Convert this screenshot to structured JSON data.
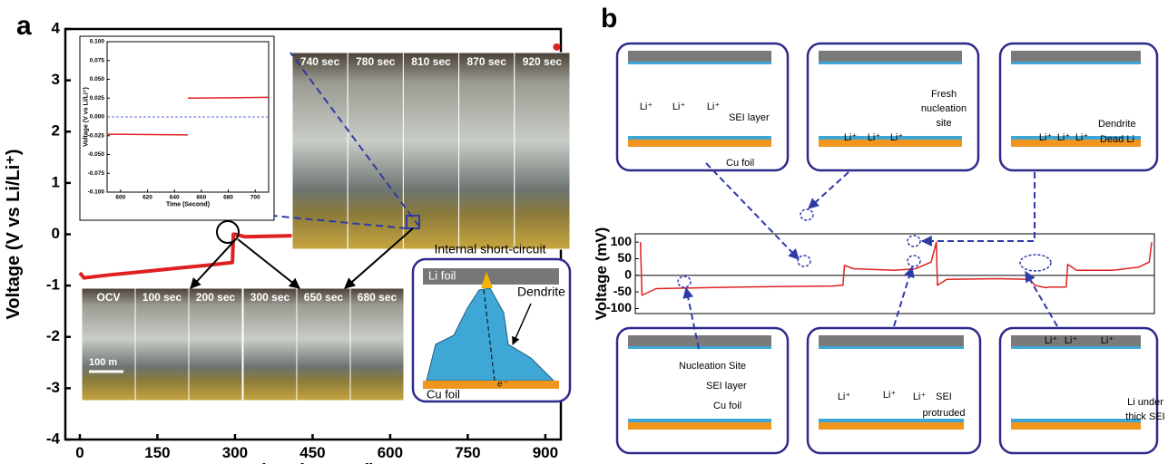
{
  "panel_labels": [
    "a",
    "b"
  ],
  "chart_data": [
    {
      "type": "line",
      "xlabel": "Time (Second)",
      "ylabel": "Voltage (V vs Li/Li⁺)",
      "xlim": [
        -28,
        930
      ],
      "ylim": [
        -4,
        4
      ],
      "xticks": [
        0,
        150,
        300,
        450,
        600,
        750,
        900
      ],
      "yticks": [
        -4,
        -3,
        -2,
        -1,
        0,
        1,
        2,
        3,
        4
      ],
      "series": [
        {
          "color": "#e02020",
          "style": "line",
          "x": [
            0,
            8,
            50,
            100,
            150,
            200,
            250,
            295,
            297,
            300,
            320,
            400,
            500,
            600,
            650,
            700,
            720,
            722,
            730,
            760,
            800,
            850,
            900,
            915
          ],
          "values": [
            -0.75,
            -0.85,
            -0.8,
            -0.75,
            -0.7,
            -0.65,
            -0.6,
            -0.55,
            0,
            0,
            -0.05,
            -0.03,
            0,
            0.02,
            0.03,
            0.04,
            0.05,
            0.5,
            0.62,
            0.68,
            0.72,
            0.78,
            0.88,
            1.0
          ]
        },
        {
          "color": "#e02020",
          "style": "dots",
          "x": [
            922
          ],
          "values": [
            3.65
          ]
        }
      ]
    },
    {
      "type": "line",
      "xlabel": "Time (Second)",
      "ylabel": "Voltage (V vs Li/Li⁺)",
      "xlim": [
        590,
        710
      ],
      "ylim": [
        -0.1,
        0.1
      ],
      "zero_line": true,
      "xticks": [
        600,
        620,
        640,
        660,
        680,
        700
      ],
      "yticks": [
        {
          "value": -0.1,
          "label": "-0.100"
        },
        {
          "value": -0.075,
          "label": "-0.075"
        },
        {
          "value": -0.05,
          "label": "-0.050"
        },
        {
          "value": -0.025,
          "label": "-0.025"
        },
        {
          "value": 0,
          "label": "0.000"
        },
        {
          "value": 0.025,
          "label": "0.025"
        },
        {
          "value": 0.05,
          "label": "0.050"
        },
        {
          "value": 0.075,
          "label": "0.075"
        },
        {
          "value": 0.1,
          "label": "0.100"
        }
      ],
      "series": [
        {
          "color": "#e02020",
          "style": "line",
          "x": [
            590,
            650,
            650,
            650,
            710
          ],
          "values": [
            -0.023,
            -0.024,
            null,
            0.025,
            0.026
          ]
        }
      ]
    },
    {
      "type": "line",
      "ylabel": "Voltage (mV)",
      "xlim": [
        0,
        100
      ],
      "ylim": [
        -115,
        125
      ],
      "zero_line": true,
      "yticks": [
        -100,
        -50,
        0,
        50,
        100
      ],
      "series": [
        {
          "color": "#e02020",
          "style": "line",
          "x": [
            1,
            1.3,
            2,
            4,
            20,
            38,
            40,
            40.3,
            42,
            50,
            54,
            57,
            58,
            58.2,
            60,
            70,
            76,
            77,
            79,
            80,
            83,
            83.3,
            85,
            92,
            97,
            99,
            99.5
          ],
          "values": [
            100,
            -60,
            -55,
            -40,
            -35,
            -32,
            -30,
            30,
            20,
            15,
            20,
            40,
            100,
            -30,
            -12,
            -10,
            -12,
            -30,
            -37,
            -35,
            -35,
            33,
            15,
            15,
            25,
            40,
            100
          ]
        }
      ]
    }
  ],
  "photos_top": [
    "740 sec",
    "780 sec",
    "810 sec",
    "870 sec",
    "920 sec"
  ],
  "photos_bottom": [
    "OCV",
    "100 sec",
    "200 sec",
    "300 sec",
    "650 sec",
    "680 sec"
  ],
  "scale_bar": "100 m",
  "short_circuit": {
    "title": "Internal short-circuit",
    "li_foil": "Li foil",
    "dendrite": "Dendrite",
    "cu_foil": "Cu foil",
    "electron": "e⁻"
  },
  "schematics": [
    [
      "Li⁺",
      "Li⁺",
      "Li⁺",
      "SEI layer",
      "Cu foil"
    ],
    [
      "Li⁺",
      "Li⁺",
      "Li⁺",
      "Fresh",
      "nucleation",
      "site"
    ],
    [
      "Li⁺",
      "Li⁺",
      "Li⁺",
      "Dendrite",
      "Dead Li"
    ],
    [
      "Nucleation Site",
      "SEI layer",
      "Cu foil"
    ],
    [
      "Li⁺",
      "Li⁺",
      "Li⁺",
      "SEI",
      "protruded"
    ],
    [
      "Li⁺",
      "Li⁺",
      "Li⁺",
      "Li under",
      "thick SEI"
    ]
  ]
}
